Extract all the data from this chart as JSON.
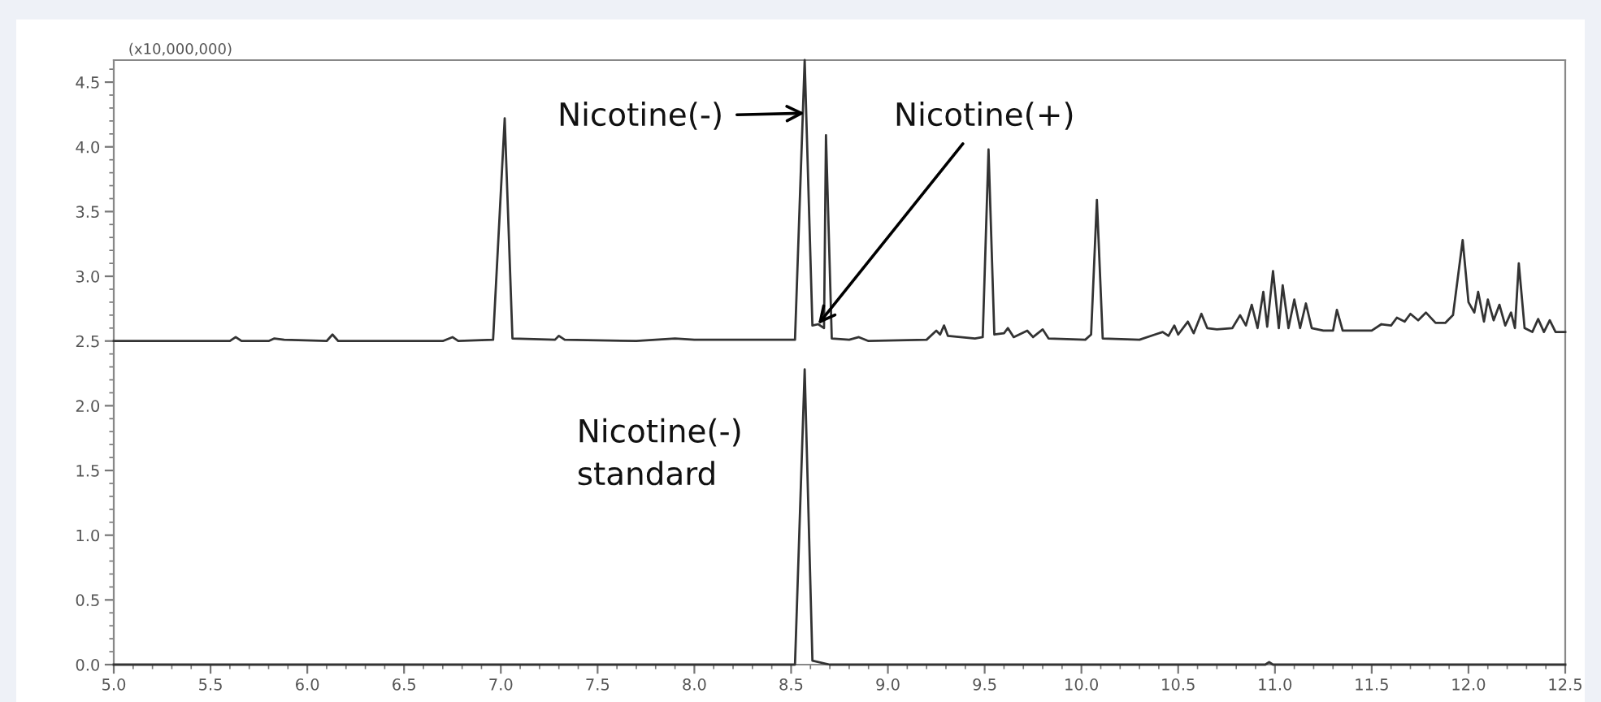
{
  "chart_data": {
    "type": "line",
    "series": [
      {
        "color": "#333333",
        "x": [
          5.0,
          5.6,
          5.63,
          5.66,
          5.8,
          5.83,
          5.88,
          6.1,
          6.13,
          6.16,
          6.7,
          6.75,
          6.78,
          6.96,
          7.02,
          7.06,
          7.28,
          7.3,
          7.33,
          7.7,
          7.9,
          8.0,
          8.3,
          8.52,
          8.57,
          8.61,
          8.64,
          8.67,
          8.68,
          8.71,
          8.8,
          8.85,
          8.9,
          9.2,
          9.25,
          9.27,
          9.29,
          9.31,
          9.45,
          9.49,
          9.52,
          9.55,
          9.6,
          9.62,
          9.65,
          9.72,
          9.75,
          9.8,
          9.83,
          10.02,
          10.05,
          10.08,
          10.11,
          10.3,
          10.38,
          10.42,
          10.45,
          10.48,
          10.5,
          10.55,
          10.58,
          10.62,
          10.65,
          10.7,
          10.78,
          10.82,
          10.85,
          10.88,
          10.91,
          10.94,
          10.96,
          10.99,
          11.02,
          11.04,
          11.07,
          11.1,
          11.13,
          11.16,
          11.19,
          11.25,
          11.3,
          11.32,
          11.35,
          11.5,
          11.55,
          11.6,
          11.63,
          11.67,
          11.7,
          11.74,
          11.78,
          11.83,
          11.88,
          11.92,
          11.97,
          12.0,
          12.03,
          12.05,
          12.08,
          12.1,
          12.13,
          12.16,
          12.19,
          12.22,
          12.24,
          12.26,
          12.29,
          12.33,
          12.36,
          12.39,
          12.42,
          12.45,
          12.5
        ],
        "values": [
          2.5,
          2.5,
          2.53,
          2.5,
          2.5,
          2.52,
          2.51,
          2.5,
          2.55,
          2.5,
          2.5,
          2.53,
          2.5,
          2.51,
          4.22,
          2.52,
          2.51,
          2.54,
          2.51,
          2.5,
          2.52,
          2.51,
          2.51,
          2.51,
          4.67,
          2.62,
          2.63,
          2.6,
          4.09,
          2.52,
          2.51,
          2.53,
          2.5,
          2.51,
          2.58,
          2.55,
          2.62,
          2.54,
          2.52,
          2.53,
          3.98,
          2.55,
          2.56,
          2.6,
          2.53,
          2.58,
          2.53,
          2.59,
          2.52,
          2.51,
          2.55,
          3.59,
          2.52,
          2.51,
          2.55,
          2.57,
          2.54,
          2.62,
          2.55,
          2.65,
          2.56,
          2.71,
          2.6,
          2.59,
          2.6,
          2.7,
          2.62,
          2.78,
          2.6,
          2.88,
          2.61,
          3.04,
          2.6,
          2.93,
          2.6,
          2.82,
          2.6,
          2.79,
          2.6,
          2.58,
          2.58,
          2.74,
          2.58,
          2.58,
          2.63,
          2.62,
          2.68,
          2.65,
          2.71,
          2.66,
          2.72,
          2.64,
          2.64,
          2.7,
          3.28,
          2.8,
          2.72,
          2.88,
          2.65,
          2.82,
          2.66,
          2.78,
          2.62,
          2.72,
          2.6,
          3.1,
          2.6,
          2.57,
          2.67,
          2.57,
          2.66,
          2.57,
          2.57
        ]
      },
      {
        "color": "#333333",
        "x": [
          5.0,
          8.52,
          8.57,
          8.61,
          8.7,
          10.95,
          10.97,
          10.99,
          12.5
        ],
        "values": [
          0,
          0,
          2.28,
          0.03,
          0,
          0,
          0.02,
          0,
          0
        ]
      }
    ],
    "xlim": [
      5,
      12.5
    ],
    "ylim": [
      0,
      4.67
    ],
    "xticks": [
      {
        "value": 5,
        "label": "5.0"
      },
      5.5,
      {
        "value": 6,
        "label": "6.0"
      },
      6.5,
      {
        "value": 7,
        "label": "7.0"
      },
      7.5,
      {
        "value": 8,
        "label": "8.0"
      },
      8.5,
      {
        "value": 9,
        "label": "9.0"
      },
      9.5,
      {
        "value": 10,
        "label": "10.0"
      },
      10.5,
      {
        "value": 11,
        "label": "11.0"
      },
      11.5,
      {
        "value": 12,
        "label": "12.0"
      },
      12.5
    ],
    "yticks": [
      {
        "value": 0,
        "label": "0.0"
      },
      0.5,
      {
        "value": 1,
        "label": "1.0"
      },
      1.5,
      {
        "value": 2,
        "label": "2.0"
      },
      2.5,
      {
        "value": 3,
        "label": "3.0"
      },
      3.5,
      {
        "value": 4,
        "label": "4.0"
      },
      4.5
    ],
    "grid": false,
    "legend": false,
    "annotations": [
      "(x10,000,000)",
      {
        "text": "Nicotine(-)",
        "x": 8.57,
        "y": 4.26
      },
      {
        "text": "Nicotine(+)",
        "x": 8.64,
        "y": 2.63
      },
      "Nicotine(-)\nstandard"
    ]
  }
}
